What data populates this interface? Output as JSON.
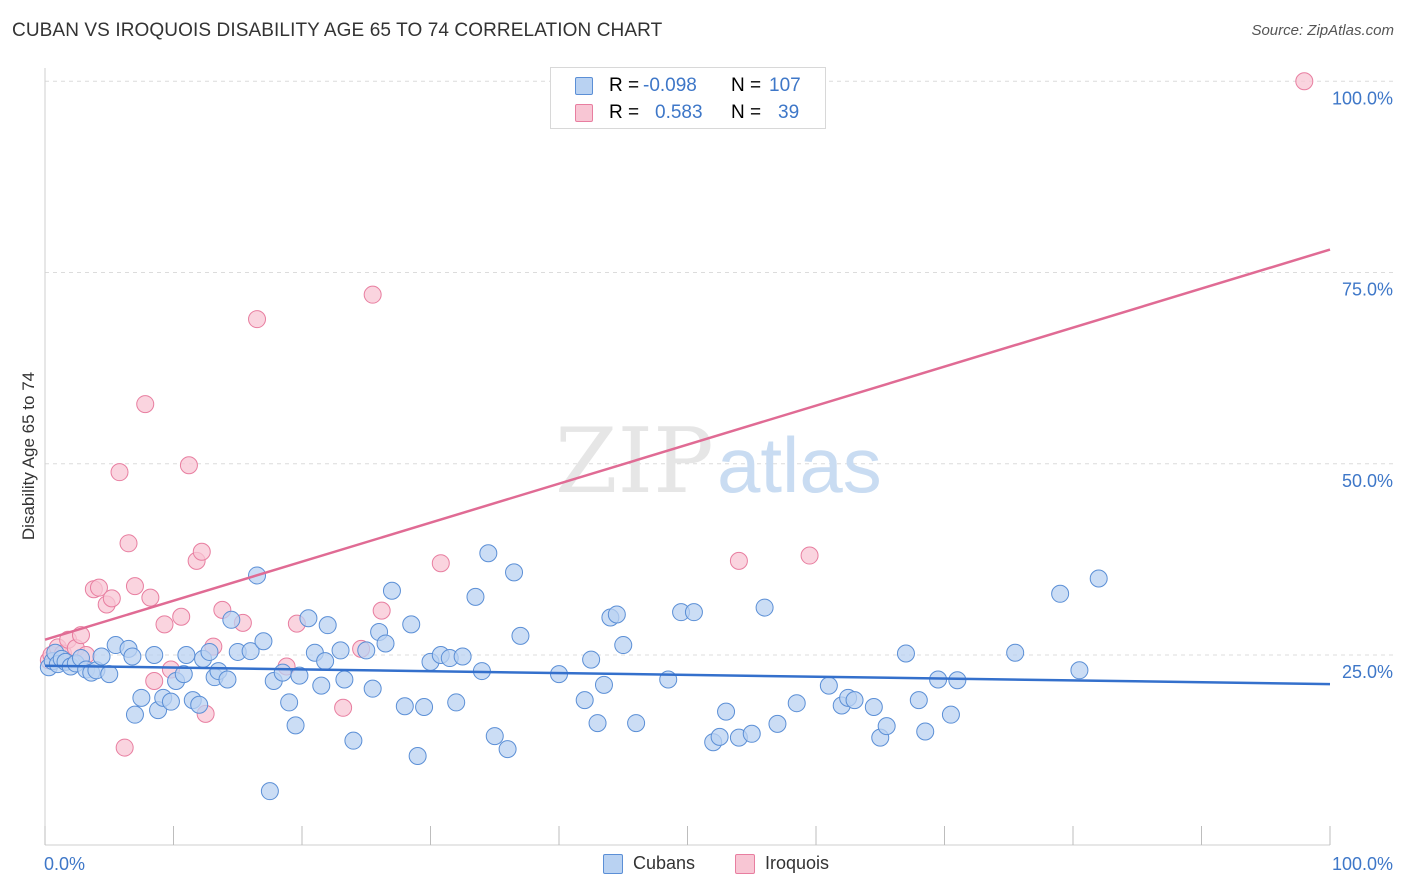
{
  "title": "CUBAN VS IROQUOIS DISABILITY AGE 65 TO 74 CORRELATION CHART",
  "source": "Source: ZipAtlas.com",
  "watermark": {
    "zip": "ZIP",
    "atlas": "atlas"
  },
  "stats": [
    {
      "r_label": "R =",
      "r_value": "-0.098",
      "n_label": "N =",
      "n_value": "107",
      "swatch_fill": "#b9d2f2",
      "swatch_stroke": "#5b8fd6"
    },
    {
      "r_label": "R =",
      "r_value": "0.583",
      "n_label": "N =",
      "n_value": "39",
      "swatch_fill": "#f8c6d4",
      "swatch_stroke": "#e87ea0"
    }
  ],
  "legend": [
    {
      "label": "Cubans",
      "fill": "#b9d2f2",
      "stroke": "#5b8fd6"
    },
    {
      "label": "Iroquois",
      "fill": "#f8c6d4",
      "stroke": "#e87ea0"
    }
  ],
  "chart_data": {
    "type": "scatter",
    "title": "CUBAN VS IROQUOIS DISABILITY AGE 65 TO 74 CORRELATION CHART",
    "xlabel": "",
    "ylabel": "Disability Age 65 to 74",
    "xlim": [
      0,
      100
    ],
    "ylim": [
      0,
      100
    ],
    "x_tick_labels": [
      "0.0%",
      "100.0%"
    ],
    "y_ticks": [
      25,
      50,
      75,
      100
    ],
    "y_tick_labels": [
      "25.0%",
      "50.0%",
      "75.0%",
      "100.0%"
    ],
    "grid": "horizontal dashed",
    "legend_position": "bottom",
    "series": [
      {
        "name": "Cubans",
        "color": "#5b8fd6",
        "fill": "#b9d2f2",
        "line_color": "#3470cc",
        "trend": {
          "x": [
            0,
            100
          ],
          "y": [
            23.6,
            21.2
          ]
        },
        "points": [
          [
            0.3,
            23.4
          ],
          [
            0.6,
            24.2
          ],
          [
            0.8,
            25.3
          ],
          [
            1.0,
            23.8
          ],
          [
            1.3,
            24.5
          ],
          [
            1.6,
            24.1
          ],
          [
            2.0,
            23.5
          ],
          [
            2.4,
            23.9
          ],
          [
            2.8,
            24.6
          ],
          [
            3.2,
            23.1
          ],
          [
            3.6,
            22.7
          ],
          [
            4.0,
            23.0
          ],
          [
            4.4,
            24.8
          ],
          [
            5.0,
            22.5
          ],
          [
            5.5,
            26.3
          ],
          [
            6.5,
            25.8
          ],
          [
            6.8,
            24.8
          ],
          [
            7.0,
            17.2
          ],
          [
            7.5,
            19.4
          ],
          [
            8.5,
            25.0
          ],
          [
            8.8,
            17.8
          ],
          [
            9.2,
            19.4
          ],
          [
            9.8,
            18.9
          ],
          [
            10.2,
            21.6
          ],
          [
            10.8,
            22.5
          ],
          [
            11.0,
            25.0
          ],
          [
            11.5,
            19.1
          ],
          [
            12.0,
            18.5
          ],
          [
            12.3,
            24.5
          ],
          [
            12.8,
            25.4
          ],
          [
            13.2,
            22.1
          ],
          [
            13.5,
            22.9
          ],
          [
            14.2,
            21.8
          ],
          [
            14.5,
            29.6
          ],
          [
            15.0,
            25.4
          ],
          [
            16.0,
            25.5
          ],
          [
            16.5,
            35.4
          ],
          [
            17.0,
            26.8
          ],
          [
            17.5,
            7.2
          ],
          [
            17.8,
            21.6
          ],
          [
            18.5,
            22.7
          ],
          [
            19.0,
            18.8
          ],
          [
            19.5,
            15.8
          ],
          [
            19.8,
            22.3
          ],
          [
            20.5,
            29.8
          ],
          [
            21.0,
            25.3
          ],
          [
            21.5,
            21.0
          ],
          [
            21.8,
            24.2
          ],
          [
            22.0,
            28.9
          ],
          [
            23.0,
            25.6
          ],
          [
            23.3,
            21.8
          ],
          [
            24.0,
            13.8
          ],
          [
            25.0,
            25.6
          ],
          [
            25.5,
            20.6
          ],
          [
            26.0,
            28.0
          ],
          [
            26.5,
            26.5
          ],
          [
            27.0,
            33.4
          ],
          [
            28.0,
            18.3
          ],
          [
            28.5,
            29.0
          ],
          [
            29.0,
            11.8
          ],
          [
            29.5,
            18.2
          ],
          [
            30.0,
            24.1
          ],
          [
            30.8,
            25.0
          ],
          [
            31.5,
            24.6
          ],
          [
            32.0,
            18.8
          ],
          [
            32.5,
            24.8
          ],
          [
            33.5,
            32.6
          ],
          [
            34.0,
            22.9
          ],
          [
            34.5,
            38.3
          ],
          [
            35.0,
            14.4
          ],
          [
            36.0,
            12.7
          ],
          [
            36.5,
            35.8
          ],
          [
            37.0,
            27.5
          ],
          [
            40.0,
            22.5
          ],
          [
            42.0,
            19.1
          ],
          [
            42.5,
            24.4
          ],
          [
            43.0,
            16.1
          ],
          [
            43.5,
            21.1
          ],
          [
            44.0,
            29.9
          ],
          [
            44.5,
            30.3
          ],
          [
            45.0,
            26.3
          ],
          [
            46.0,
            16.1
          ],
          [
            48.5,
            21.8
          ],
          [
            49.5,
            30.6
          ],
          [
            50.5,
            30.6
          ],
          [
            52.0,
            13.6
          ],
          [
            52.5,
            14.3
          ],
          [
            53.0,
            17.6
          ],
          [
            54.0,
            14.2
          ],
          [
            55.0,
            14.7
          ],
          [
            56.0,
            31.2
          ],
          [
            57.0,
            16.0
          ],
          [
            58.5,
            18.7
          ],
          [
            61.0,
            21.0
          ],
          [
            62.0,
            18.4
          ],
          [
            62.5,
            19.4
          ],
          [
            63.0,
            19.1
          ],
          [
            64.5,
            18.2
          ],
          [
            65.0,
            14.2
          ],
          [
            65.5,
            15.7
          ],
          [
            67.0,
            25.2
          ],
          [
            68.0,
            19.1
          ],
          [
            68.5,
            15.0
          ],
          [
            69.5,
            21.8
          ],
          [
            70.5,
            17.2
          ],
          [
            71.0,
            21.7
          ],
          [
            75.5,
            25.3
          ],
          [
            79.0,
            33.0
          ],
          [
            80.5,
            23.0
          ],
          [
            82.0,
            35.0
          ]
        ]
      },
      {
        "name": "Iroquois",
        "color": "#e87ea0",
        "fill": "#f8c6d4",
        "line_color": "#e06b94",
        "trend": {
          "x": [
            0,
            100
          ],
          "y": [
            27.0,
            78.0
          ]
        },
        "points": [
          [
            0.3,
            24.3
          ],
          [
            0.5,
            25.0
          ],
          [
            1.0,
            26.0
          ],
          [
            1.4,
            25.2
          ],
          [
            1.8,
            27.0
          ],
          [
            2.4,
            25.9
          ],
          [
            2.8,
            27.6
          ],
          [
            3.2,
            25.0
          ],
          [
            3.8,
            33.6
          ],
          [
            4.2,
            33.8
          ],
          [
            4.8,
            31.6
          ],
          [
            5.2,
            32.4
          ],
          [
            5.8,
            48.9
          ],
          [
            6.2,
            12.9
          ],
          [
            6.5,
            39.6
          ],
          [
            7.0,
            34.0
          ],
          [
            7.8,
            57.8
          ],
          [
            8.2,
            32.5
          ],
          [
            8.5,
            21.6
          ],
          [
            9.3,
            29.0
          ],
          [
            9.8,
            23.1
          ],
          [
            10.6,
            30.0
          ],
          [
            11.2,
            49.8
          ],
          [
            11.8,
            37.3
          ],
          [
            12.2,
            38.5
          ],
          [
            12.5,
            17.3
          ],
          [
            13.1,
            26.1
          ],
          [
            13.8,
            30.9
          ],
          [
            15.4,
            29.2
          ],
          [
            16.5,
            68.9
          ],
          [
            18.8,
            23.5
          ],
          [
            19.6,
            29.1
          ],
          [
            23.2,
            18.1
          ],
          [
            24.6,
            25.8
          ],
          [
            25.5,
            72.1
          ],
          [
            26.2,
            30.8
          ],
          [
            30.8,
            37.0
          ],
          [
            54.0,
            37.3
          ],
          [
            59.5,
            38.0
          ],
          [
            98.0,
            100.0
          ]
        ]
      }
    ]
  }
}
